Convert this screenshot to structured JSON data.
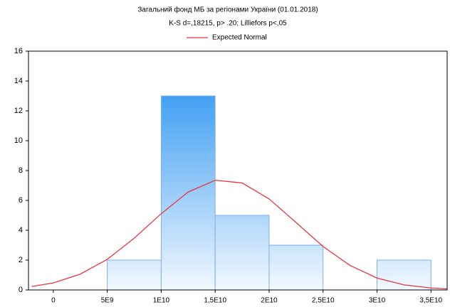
{
  "chart_data": {
    "type": "histogram",
    "title": "Загальний фонд МБ за регіонами України (01.01.2018)",
    "subtitle": "K-S d=,18215, p> .20; Lilliefors p<,05",
    "bins": [
      5000000000,
      10000000000,
      15000000000,
      20000000000,
      25000000000,
      30000000000,
      35000000000
    ],
    "counts": [
      2,
      13,
      5,
      3,
      0,
      2
    ],
    "color": [
      "#1a8cf0",
      "#f2f8ff"
    ],
    "curve": {
      "name": "Expected Normal",
      "color": "#e8363d",
      "x": [
        -2000000000,
        0,
        2500000000,
        5000000000,
        7500000000,
        10000000000,
        12500000000,
        15000000000,
        17500000000,
        20000000000,
        22500000000,
        25000000000,
        27500000000,
        30000000000,
        32500000000,
        35000000000,
        36500000000
      ],
      "values": [
        0.23,
        0.47,
        1.06,
        2.05,
        3.47,
        5.11,
        6.56,
        7.35,
        7.17,
        6.1,
        4.52,
        2.91,
        1.64,
        0.8,
        0.34,
        0.13,
        0.07
      ]
    },
    "xlim": [
      -2300000000,
      36500000000
    ],
    "xticks": [
      0,
      {
        "value": 5000000000,
        "label": "5E9"
      },
      {
        "value": 10000000000,
        "label": "1E10"
      },
      {
        "value": 15000000000,
        "label": "1,5E10"
      },
      {
        "value": 20000000000,
        "label": "2E10"
      },
      {
        "value": 25000000000,
        "label": "2,5E10"
      },
      {
        "value": 30000000000,
        "label": "3E10"
      },
      {
        "value": 35000000000,
        "label": "3,5E10"
      }
    ],
    "ylim": [
      0,
      16
    ],
    "yticks": [
      0,
      2,
      4,
      6,
      8,
      10,
      12,
      14,
      16
    ]
  }
}
